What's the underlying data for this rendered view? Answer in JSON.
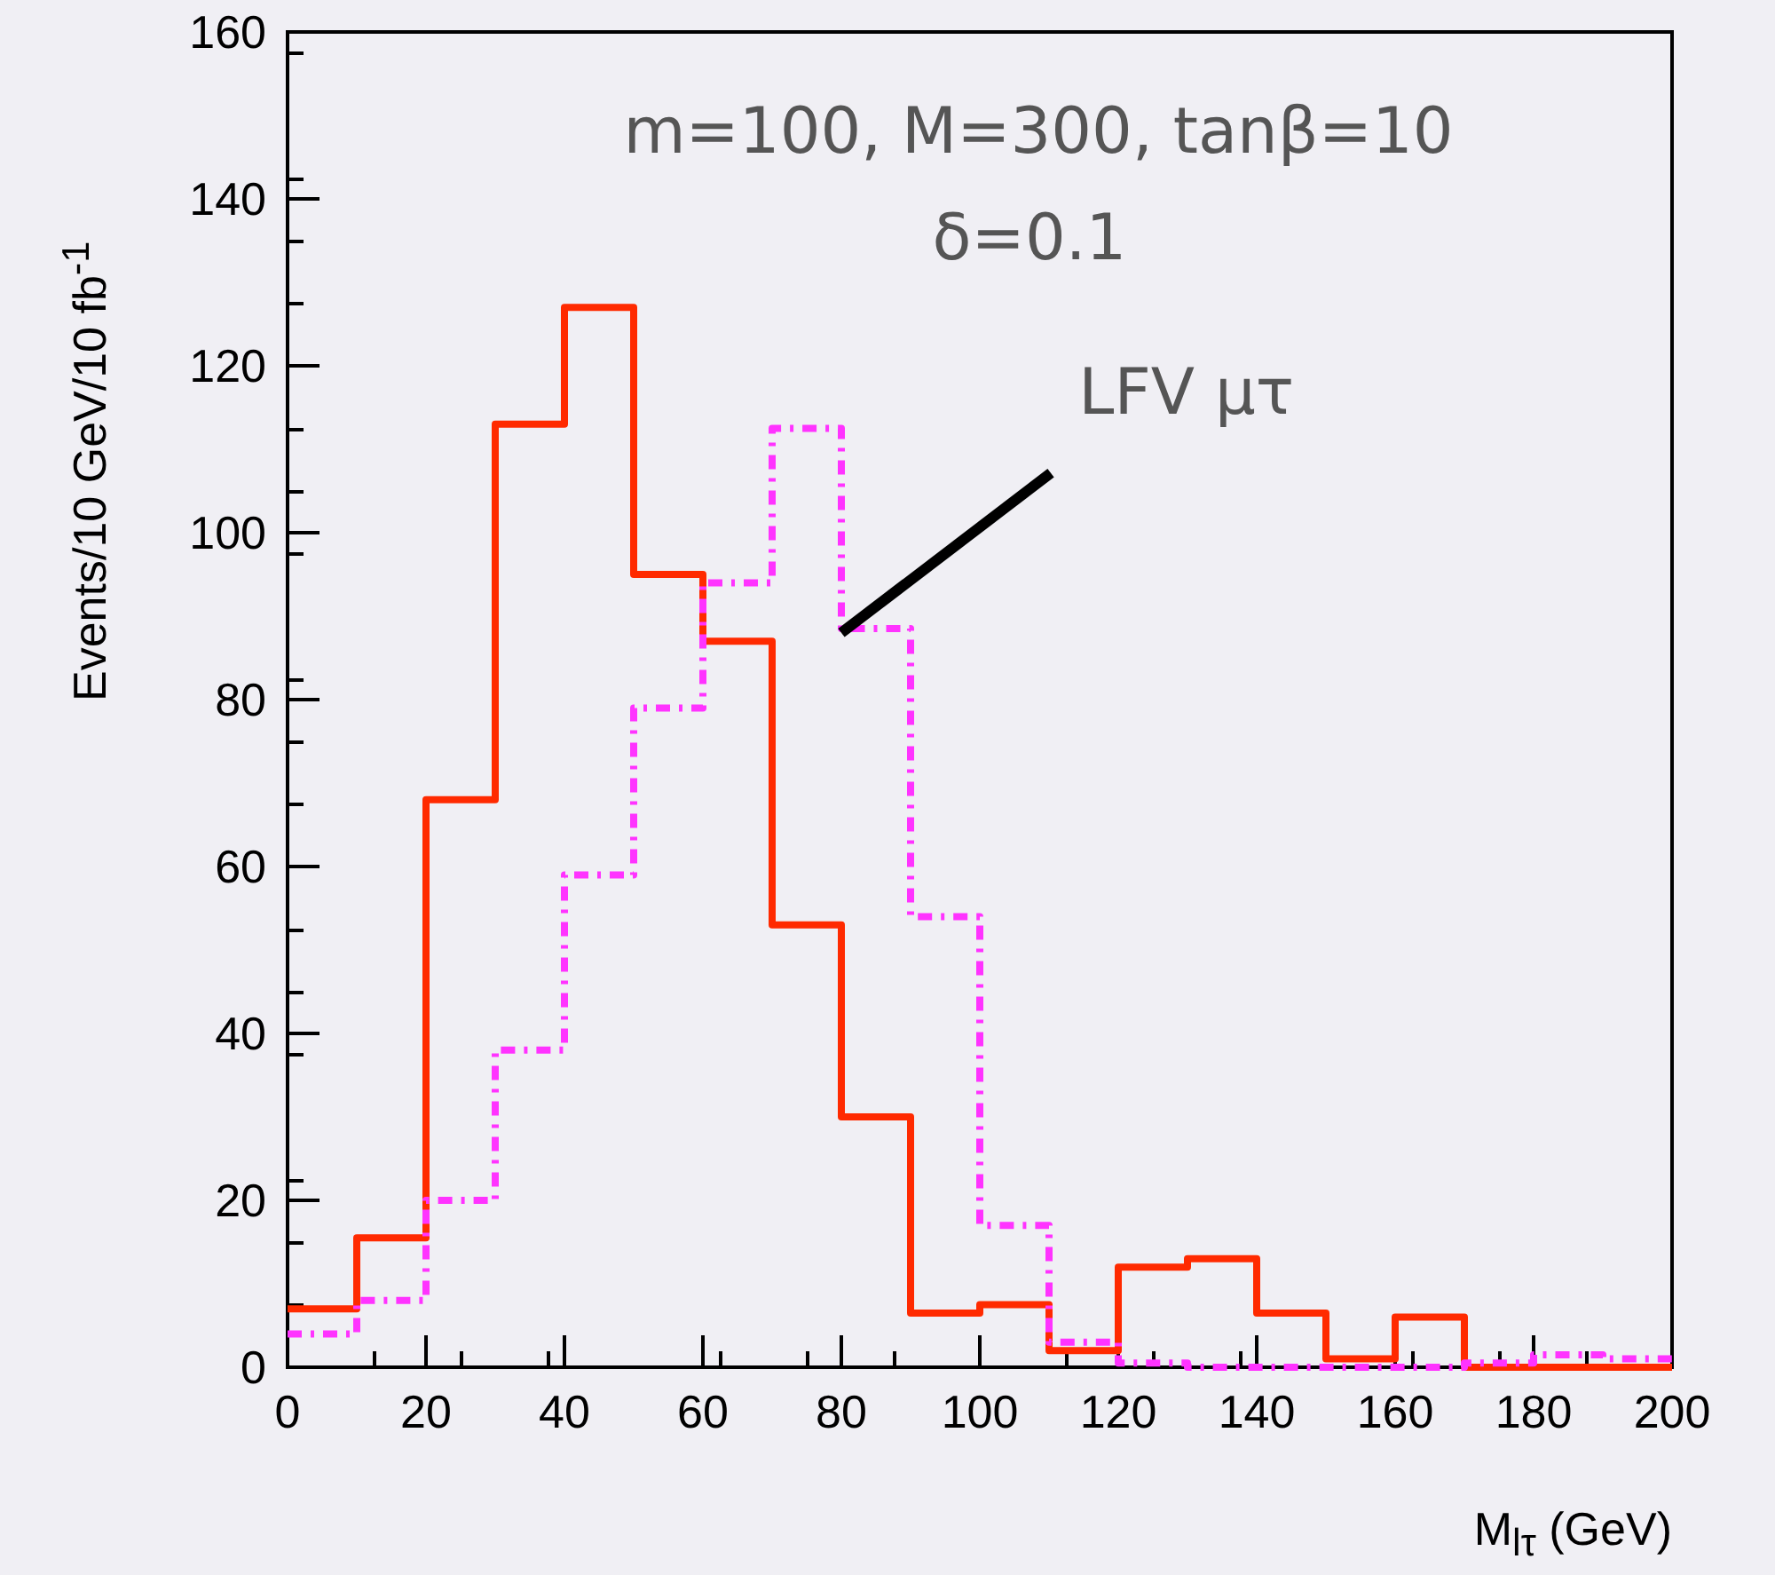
{
  "chart_data": {
    "type": "histogram",
    "xlabel": "M$_{lτ}$ (GeV)",
    "ylabel": "Events/10 GeV/10 fb$^{-1}$",
    "bins": [
      0,
      10,
      20,
      30,
      40,
      50,
      60,
      70,
      80,
      90,
      100,
      110,
      120,
      130,
      140,
      150,
      160,
      170,
      180,
      190,
      200
    ],
    "series": [
      {
        "color": "#ff2a00",
        "line_style": "solid",
        "values": [
          7,
          15.5,
          68,
          113,
          127,
          95,
          87,
          53,
          30,
          6.5,
          7.5,
          2,
          12,
          13,
          6.5,
          1,
          6,
          0,
          0,
          0
        ]
      },
      {
        "color": "#ff33ff",
        "line_style": "dashed",
        "values": [
          4,
          8,
          20,
          38,
          59,
          79,
          94,
          112.5,
          88.5,
          54,
          17,
          3,
          0.5,
          0,
          0,
          0,
          0,
          0.5,
          1.5,
          1
        ]
      }
    ],
    "xlim": [
      0,
      200
    ],
    "xticks": [
      0,
      20,
      40,
      60,
      80,
      100,
      120,
      140,
      160,
      180,
      200
    ],
    "ylim": [
      0,
      160
    ],
    "yticks": [
      0,
      20,
      40,
      60,
      80,
      100,
      120,
      140,
      160
    ],
    "annotations": [
      "m=100, M=300, tanβ=10",
      "δ=0.1",
      {
        "text": "LFV μτ",
        "x": 80,
        "y": 88
      }
    ],
    "grid": false
  }
}
